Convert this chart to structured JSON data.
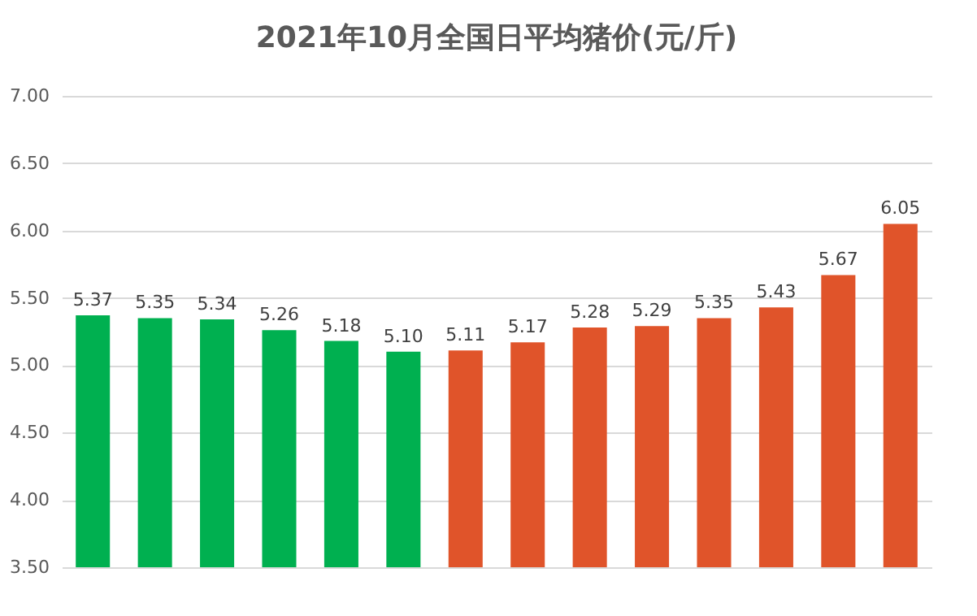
{
  "chart_data": {
    "type": "bar",
    "title": "2021年10月全国日平均猪价(元/斤)",
    "categories": [
      null,
      null,
      null,
      null,
      null,
      null,
      null,
      null,
      null,
      null,
      null,
      null,
      null,
      null
    ],
    "values": [
      5.37,
      5.35,
      5.34,
      5.26,
      5.18,
      5.1,
      5.11,
      5.17,
      5.28,
      5.29,
      5.35,
      5.43,
      5.67,
      6.05
    ],
    "value_labels": [
      "5.37",
      "5.35",
      "5.34",
      "5.26",
      "5.18",
      "5.10",
      "5.11",
      "5.17",
      "5.28",
      "5.29",
      "5.35",
      "5.43",
      "5.67",
      "6.05"
    ],
    "colors": [
      "#00b050",
      "#00b050",
      "#00b050",
      "#00b050",
      "#00b050",
      "#00b050",
      "#e0542a",
      "#e0542a",
      "#e0542a",
      "#e0542a",
      "#e0542a",
      "#e0542a",
      "#e0542a",
      "#e0542a"
    ],
    "ylim": [
      3.5,
      7.0
    ],
    "yticks": [
      {
        "value": 3.5,
        "label": "3.50"
      },
      {
        "value": 4.0,
        "label": "4.00"
      },
      {
        "value": 4.5,
        "label": "4.50"
      },
      {
        "value": 5.0,
        "label": "5.00"
      },
      {
        "value": 5.5,
        "label": "5.50"
      },
      {
        "value": 6.0,
        "label": "6.00"
      },
      {
        "value": 6.5,
        "label": "6.50"
      },
      {
        "value": 7.0,
        "label": "7.00"
      }
    ],
    "grid": "y",
    "tick_labels": "y"
  }
}
